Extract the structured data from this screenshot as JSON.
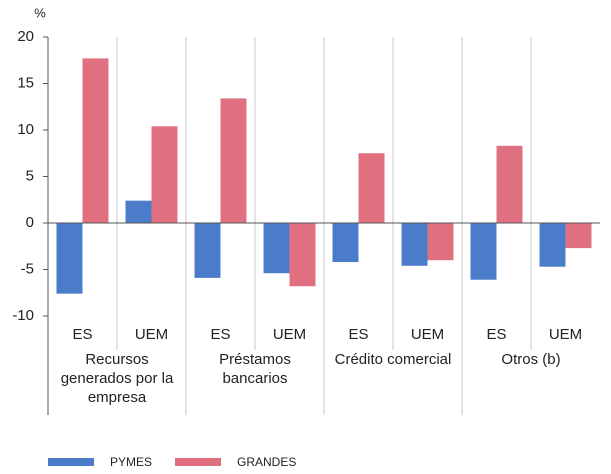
{
  "chart_data": {
    "type": "bar",
    "y_label": "%",
    "categories": [
      "ES",
      "UEM",
      "ES",
      "UEM",
      "ES",
      "UEM",
      "ES",
      "UEM"
    ],
    "groups": [
      "Recursos generados por la empresa",
      "Préstamos bancarios",
      "Crédito comercial",
      "Otros (b)"
    ],
    "series": [
      {
        "name": "PYMES",
        "color": "#4a7cc9",
        "values": [
          -7.6,
          2.4,
          -5.9,
          -5.4,
          -4.2,
          -4.6,
          -6.1,
          -4.7
        ]
      },
      {
        "name": "GRANDES",
        "color": "#e07080",
        "values": [
          17.7,
          10.4,
          13.4,
          -6.8,
          7.5,
          -4.0,
          8.3,
          -2.7
        ]
      }
    ],
    "ylim": [
      -10,
      20
    ],
    "yticks": [
      -10,
      -5,
      0,
      5,
      10,
      15,
      20
    ]
  }
}
